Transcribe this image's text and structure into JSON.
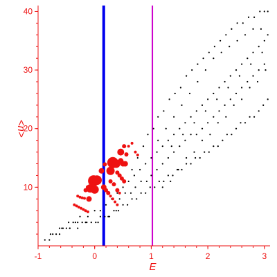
{
  "chart_data": {
    "type": "scatter",
    "xlabel": "E",
    "ylabel": "<n>",
    "xlim": [
      -1,
      3.1
    ],
    "ylim": [
      0,
      41
    ],
    "x_ticks": [
      -1,
      0,
      1,
      2,
      3
    ],
    "y_ticks": [
      10,
      20,
      30,
      40
    ],
    "grid": false,
    "axis_color": "#ee1111",
    "vertical_lines": [
      {
        "x": 0.16,
        "color": "#0000ee"
      },
      {
        "x": 1.02,
        "color": "#cc00cc"
      }
    ],
    "series": [
      {
        "color": "#000000",
        "points": [
          [
            -0.88,
            1
          ],
          [
            -0.8,
            1
          ],
          [
            -0.74,
            2
          ],
          [
            -0.68,
            2
          ],
          [
            -0.62,
            2
          ],
          [
            -0.56,
            3
          ],
          [
            -0.5,
            3
          ],
          [
            -0.44,
            3
          ],
          [
            -0.38,
            4
          ],
          [
            -0.3,
            4
          ],
          [
            -0.22,
            4
          ],
          [
            -0.14,
            4
          ],
          [
            -0.06,
            4
          ],
          [
            0.02,
            4
          ],
          [
            0.1,
            5
          ],
          [
            0.18,
            5
          ],
          [
            0.26,
            5
          ],
          [
            0.34,
            6
          ],
          [
            0.42,
            6
          ],
          [
            0.5,
            7
          ],
          [
            0.58,
            7
          ],
          [
            0.66,
            8
          ],
          [
            0.74,
            8
          ],
          [
            0.82,
            9
          ],
          [
            0.9,
            9
          ],
          [
            0.98,
            10
          ],
          [
            1.06,
            10
          ],
          [
            1.14,
            11
          ],
          [
            1.22,
            11
          ],
          [
            1.3,
            12
          ],
          [
            1.38,
            12
          ],
          [
            1.46,
            13
          ],
          [
            1.54,
            13
          ],
          [
            1.62,
            14
          ],
          [
            1.7,
            14
          ],
          [
            1.78,
            15
          ],
          [
            1.86,
            15
          ],
          [
            1.94,
            16
          ],
          [
            2.02,
            16
          ],
          [
            2.1,
            17
          ],
          [
            2.18,
            17
          ],
          [
            2.26,
            18
          ],
          [
            2.34,
            19
          ],
          [
            2.42,
            19
          ],
          [
            2.5,
            20
          ],
          [
            2.58,
            21
          ],
          [
            2.66,
            21
          ],
          [
            2.74,
            22
          ],
          [
            2.82,
            22
          ],
          [
            2.9,
            23
          ],
          [
            2.98,
            24
          ],
          [
            3.06,
            25
          ],
          [
            -0.78,
            2
          ],
          [
            -0.62,
            3
          ],
          [
            -0.46,
            4
          ],
          [
            -0.34,
            4
          ],
          [
            -0.26,
            5
          ],
          [
            -0.12,
            5
          ],
          [
            0.0,
            6
          ],
          [
            0.1,
            6
          ],
          [
            0.2,
            7
          ],
          [
            0.3,
            8
          ],
          [
            0.4,
            9
          ],
          [
            0.5,
            10
          ],
          [
            0.6,
            11
          ],
          [
            0.7,
            12
          ],
          [
            0.8,
            13
          ],
          [
            0.9,
            14
          ],
          [
            1.0,
            15
          ],
          [
            1.1,
            16
          ],
          [
            1.2,
            17
          ],
          [
            1.3,
            18
          ],
          [
            1.4,
            19
          ],
          [
            1.5,
            20
          ],
          [
            1.6,
            21
          ],
          [
            1.7,
            22
          ],
          [
            1.8,
            23
          ],
          [
            1.9,
            24
          ],
          [
            2.0,
            25
          ],
          [
            2.1,
            26
          ],
          [
            2.2,
            27
          ],
          [
            2.3,
            28
          ],
          [
            2.4,
            29
          ],
          [
            2.5,
            30
          ],
          [
            2.6,
            31
          ],
          [
            2.7,
            32
          ],
          [
            2.8,
            33
          ],
          [
            2.9,
            34
          ],
          [
            3.0,
            35
          ],
          [
            3.06,
            36
          ],
          [
            0.66,
            13
          ],
          [
            0.76,
            15
          ],
          [
            0.86,
            17
          ],
          [
            0.94,
            19
          ],
          [
            1.04,
            20
          ],
          [
            1.12,
            22
          ],
          [
            1.22,
            23
          ],
          [
            1.32,
            25
          ],
          [
            1.42,
            26
          ],
          [
            1.52,
            27
          ],
          [
            1.62,
            29
          ],
          [
            1.72,
            30
          ],
          [
            1.82,
            31
          ],
          [
            1.92,
            32
          ],
          [
            2.02,
            33
          ],
          [
            2.12,
            34
          ],
          [
            2.22,
            35
          ],
          [
            2.32,
            36
          ],
          [
            2.42,
            37
          ],
          [
            2.52,
            38
          ],
          [
            2.62,
            38
          ],
          [
            2.72,
            39
          ],
          [
            2.82,
            39
          ],
          [
            2.92,
            40
          ],
          [
            3.0,
            40
          ],
          [
            3.06,
            40
          ],
          [
            0.44,
            8
          ],
          [
            0.54,
            9
          ],
          [
            0.64,
            9
          ],
          [
            0.72,
            10
          ],
          [
            0.82,
            11
          ],
          [
            0.92,
            11
          ],
          [
            1.0,
            12
          ],
          [
            1.1,
            13
          ],
          [
            1.2,
            14
          ],
          [
            1.3,
            15
          ],
          [
            1.4,
            16
          ],
          [
            1.5,
            17
          ],
          [
            1.6,
            18
          ],
          [
            1.7,
            19
          ],
          [
            1.8,
            19
          ],
          [
            1.9,
            20
          ],
          [
            2.0,
            21
          ],
          [
            2.1,
            22
          ],
          [
            2.2,
            23
          ],
          [
            2.3,
            24
          ],
          [
            2.4,
            25
          ],
          [
            2.5,
            26
          ],
          [
            2.6,
            27
          ],
          [
            2.7,
            28
          ],
          [
            2.8,
            29
          ],
          [
            2.9,
            30
          ],
          [
            3.0,
            31
          ],
          [
            1.12,
            18
          ],
          [
            1.26,
            20
          ],
          [
            1.4,
            22
          ],
          [
            1.54,
            24
          ],
          [
            1.68,
            26
          ],
          [
            1.82,
            28
          ],
          [
            1.96,
            30
          ],
          [
            2.1,
            32
          ],
          [
            2.24,
            33
          ],
          [
            2.38,
            34
          ],
          [
            2.52,
            35
          ],
          [
            2.66,
            36
          ],
          [
            2.8,
            37
          ],
          [
            2.94,
            37
          ],
          [
            1.2,
            10
          ],
          [
            1.34,
            11
          ],
          [
            1.48,
            13
          ],
          [
            1.62,
            15
          ],
          [
            1.76,
            16
          ],
          [
            1.9,
            18
          ],
          [
            2.04,
            19
          ],
          [
            2.18,
            21
          ],
          [
            2.32,
            22
          ],
          [
            2.46,
            24
          ],
          [
            2.6,
            25
          ],
          [
            2.74,
            27
          ],
          [
            2.88,
            28
          ],
          [
            3.02,
            30
          ],
          [
            -0.58,
            3
          ],
          [
            -0.44,
            3
          ],
          [
            -0.3,
            3
          ],
          [
            -0.16,
            4
          ],
          [
            0.06,
            4
          ],
          [
            0.24,
            5
          ],
          [
            0.38,
            6
          ],
          [
            1.36,
            17
          ],
          [
            1.56,
            19
          ],
          [
            1.76,
            21
          ],
          [
            1.96,
            23
          ],
          [
            2.16,
            25
          ],
          [
            2.36,
            27
          ],
          [
            2.56,
            29
          ],
          [
            2.76,
            31
          ],
          [
            2.96,
            33
          ]
        ]
      },
      {
        "color": "#ee1111",
        "points": [
          [
            -0.36,
            7
          ],
          [
            -0.32,
            6.8
          ],
          [
            -0.28,
            6.6
          ],
          [
            -0.24,
            6.4
          ],
          [
            -0.2,
            6.2
          ],
          [
            -0.16,
            6.0
          ],
          [
            -0.12,
            5.8
          ],
          [
            -0.3,
            8.5
          ],
          [
            -0.26,
            8.3
          ],
          [
            -0.22,
            8.2
          ],
          [
            -0.18,
            8.1
          ],
          [
            -0.12,
            10
          ],
          [
            -0.16,
            9.5
          ],
          [
            0.4,
            7
          ],
          [
            0.36,
            7.5
          ],
          [
            0.32,
            8
          ],
          [
            0.28,
            8.5
          ],
          [
            0.24,
            9
          ],
          [
            0.2,
            9.5
          ],
          [
            0.16,
            10
          ],
          [
            0.44,
            9
          ],
          [
            0.4,
            9.5
          ],
          [
            0.34,
            10.5
          ],
          [
            0.28,
            11
          ],
          [
            0.52,
            11
          ],
          [
            0.48,
            11.5
          ],
          [
            0.44,
            12
          ],
          [
            0.4,
            12.5
          ],
          [
            0.54,
            14
          ],
          [
            0.5,
            14
          ],
          [
            0.46,
            14.5
          ],
          [
            0.6,
            17
          ],
          [
            0.66,
            17.5
          ],
          [
            0.52,
            17
          ],
          [
            0.72,
            16
          ],
          [
            0.76,
            15.5
          ]
        ],
        "sizes": [
          2,
          2,
          2,
          2,
          2,
          2,
          2,
          2,
          2,
          2,
          2,
          3,
          3,
          2,
          2,
          2,
          2,
          3,
          3,
          4,
          2,
          3,
          3,
          3,
          3,
          3,
          3,
          3,
          4,
          4,
          4,
          2,
          2,
          3,
          2,
          2
        ]
      },
      {
        "color": "#ee1111",
        "points": [
          [
            -0.08,
            9.8
          ],
          [
            0.0,
            9.6
          ],
          [
            -0.02,
            11.1
          ],
          [
            0.04,
            11.2
          ],
          [
            0.12,
            12.8
          ],
          [
            0.28,
            12.8
          ],
          [
            0.32,
            14.2
          ],
          [
            0.38,
            14.0
          ],
          [
            0.46,
            16.0
          ],
          [
            0.56,
            15.6
          ],
          [
            -0.1,
            8.0
          ],
          [
            0.18,
            13.9
          ]
        ],
        "sizes": [
          6,
          6,
          8,
          7,
          4,
          6,
          8,
          6,
          5,
          3,
          4,
          3
        ]
      }
    ]
  }
}
